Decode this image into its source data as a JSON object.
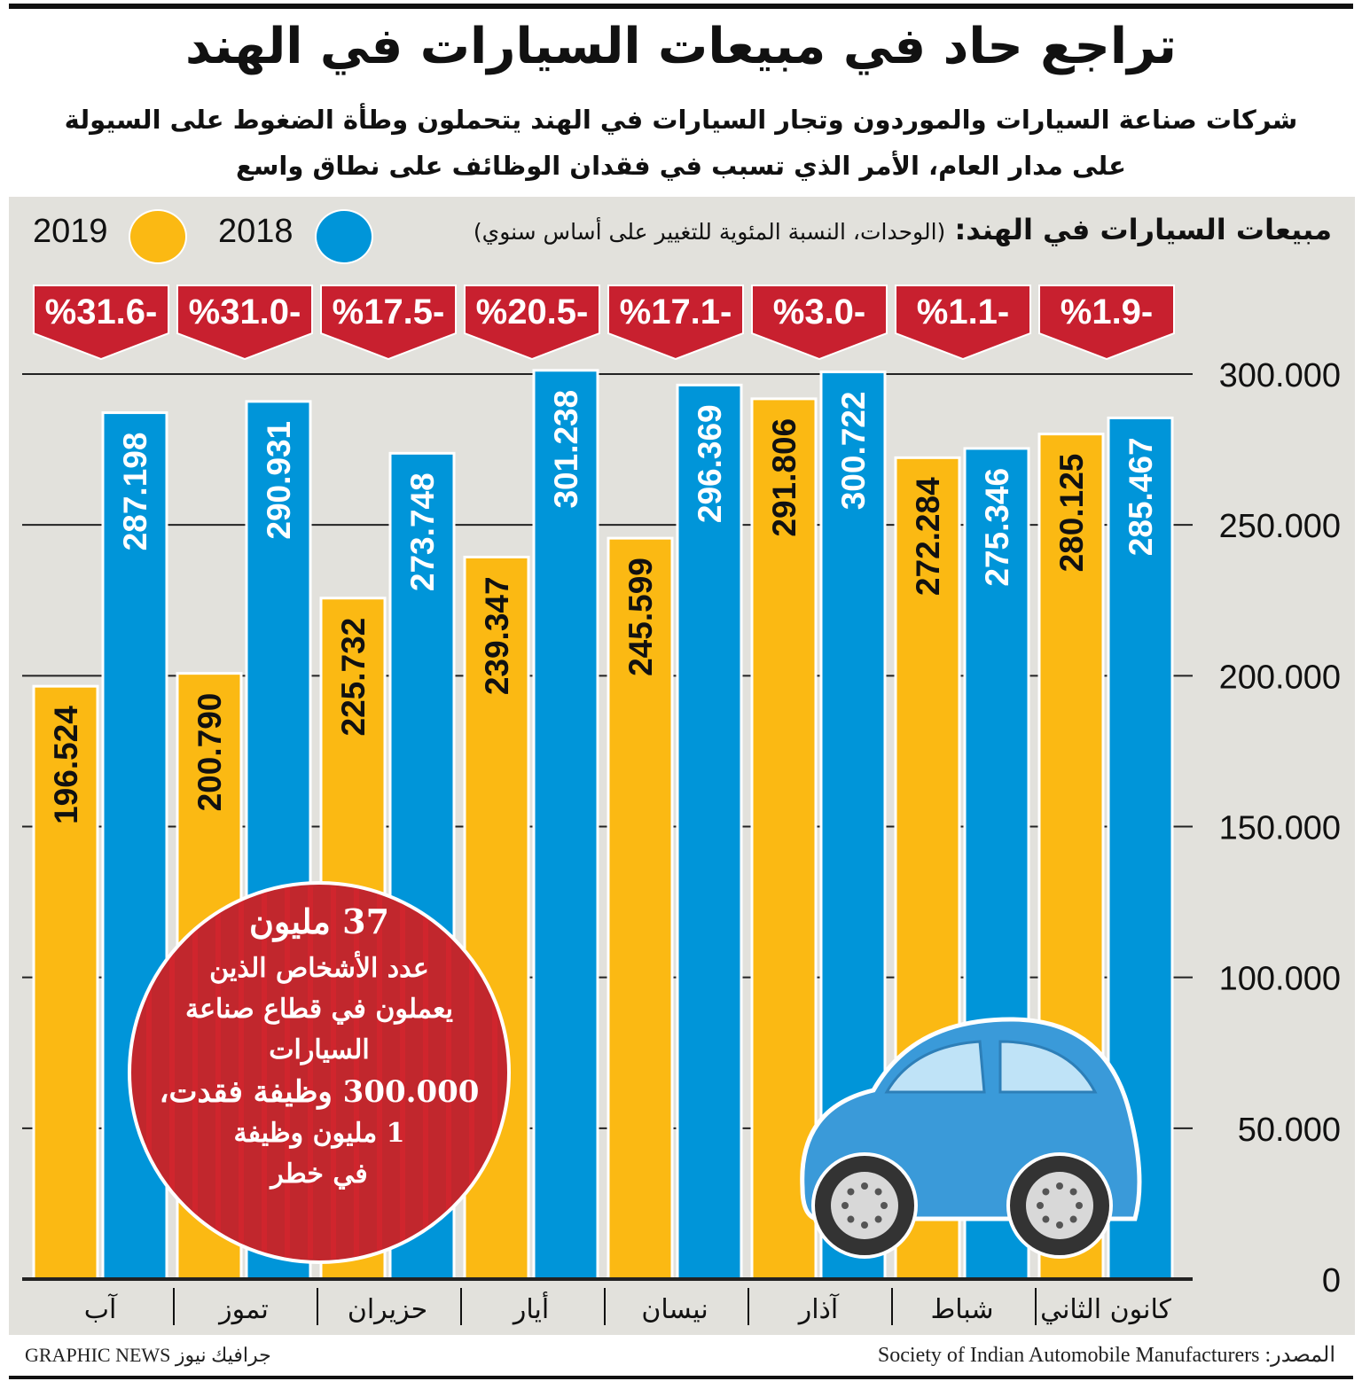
{
  "title": "تراجع حاد في مبيعات السيارات في الهند",
  "subtitle_lines": [
    "شركات صناعة السيارات والموردون وتجار السيارات في الهند يتحملون وطأة الضغوط على السيولة",
    "على مدار العام، الأمر الذي تسبب في فقدان الوظائف على نطاق واسع"
  ],
  "chart_data": {
    "type": "bar",
    "title": "مبيعات السيارات في الهند:",
    "subtitle": "(الوحدات، النسبة المئوية للتغيير على أساس سنوي)",
    "categories": [
      "كانون الثاني",
      "شباط",
      "آذار",
      "نيسان",
      "أيار",
      "حزيران",
      "تموز",
      "آب"
    ],
    "category_order": "right-to-left",
    "series": [
      {
        "name": "2019",
        "color": "#fbb913",
        "values": [
          280125,
          272284,
          291806,
          245599,
          239347,
          225732,
          200790,
          196524
        ]
      },
      {
        "name": "2018",
        "color": "#0095d9",
        "values": [
          285467,
          275346,
          300722,
          296369,
          301238,
          273748,
          290931,
          287198
        ]
      }
    ],
    "value_labels": {
      "2019": [
        "280.125",
        "272.284",
        "291.806",
        "245.599",
        "239.347",
        "225.732",
        "200.790",
        "196.524"
      ],
      "2018": [
        "285.467",
        "275.346",
        "300.722",
        "296.369",
        "301.238",
        "273.748",
        "290.931",
        "287.198"
      ]
    },
    "change_percent": [
      -1.9,
      -1.1,
      -3.0,
      -17.1,
      -20.5,
      -17.5,
      -31.0,
      -31.6
    ],
    "change_labels": [
      "%1.9-",
      "%1.1-",
      "%3.0-",
      "%17.1-",
      "%20.5-",
      "%17.5-",
      "%31.0-",
      "%31.6-"
    ],
    "change_color": "#c8202f",
    "ylim": [
      0,
      300000
    ],
    "yticks": [
      0,
      50000,
      100000,
      150000,
      200000,
      250000,
      300000
    ],
    "ytick_labels": [
      "0",
      "50.000",
      "100.000",
      "150.000",
      "200.000",
      "250.000",
      "300.000"
    ],
    "yaxis_position": "right",
    "grid": true,
    "legend": "top-left"
  },
  "callout": {
    "headline": "37 مليون",
    "lines": [
      "عدد الأشخاص الذين",
      "يعملون في قطاع صناعة",
      "السيارات",
      "300.000 وظيفة فقدت،",
      "1 مليون وظيفة",
      "في خطر"
    ],
    "color": "#c1272d"
  },
  "illustration": "blue-car",
  "footer": {
    "credit": "GRAPHIC NEWS جرافيك نيوز",
    "source": "المصدر: Society of Indian Automobile Manufacturers"
  }
}
